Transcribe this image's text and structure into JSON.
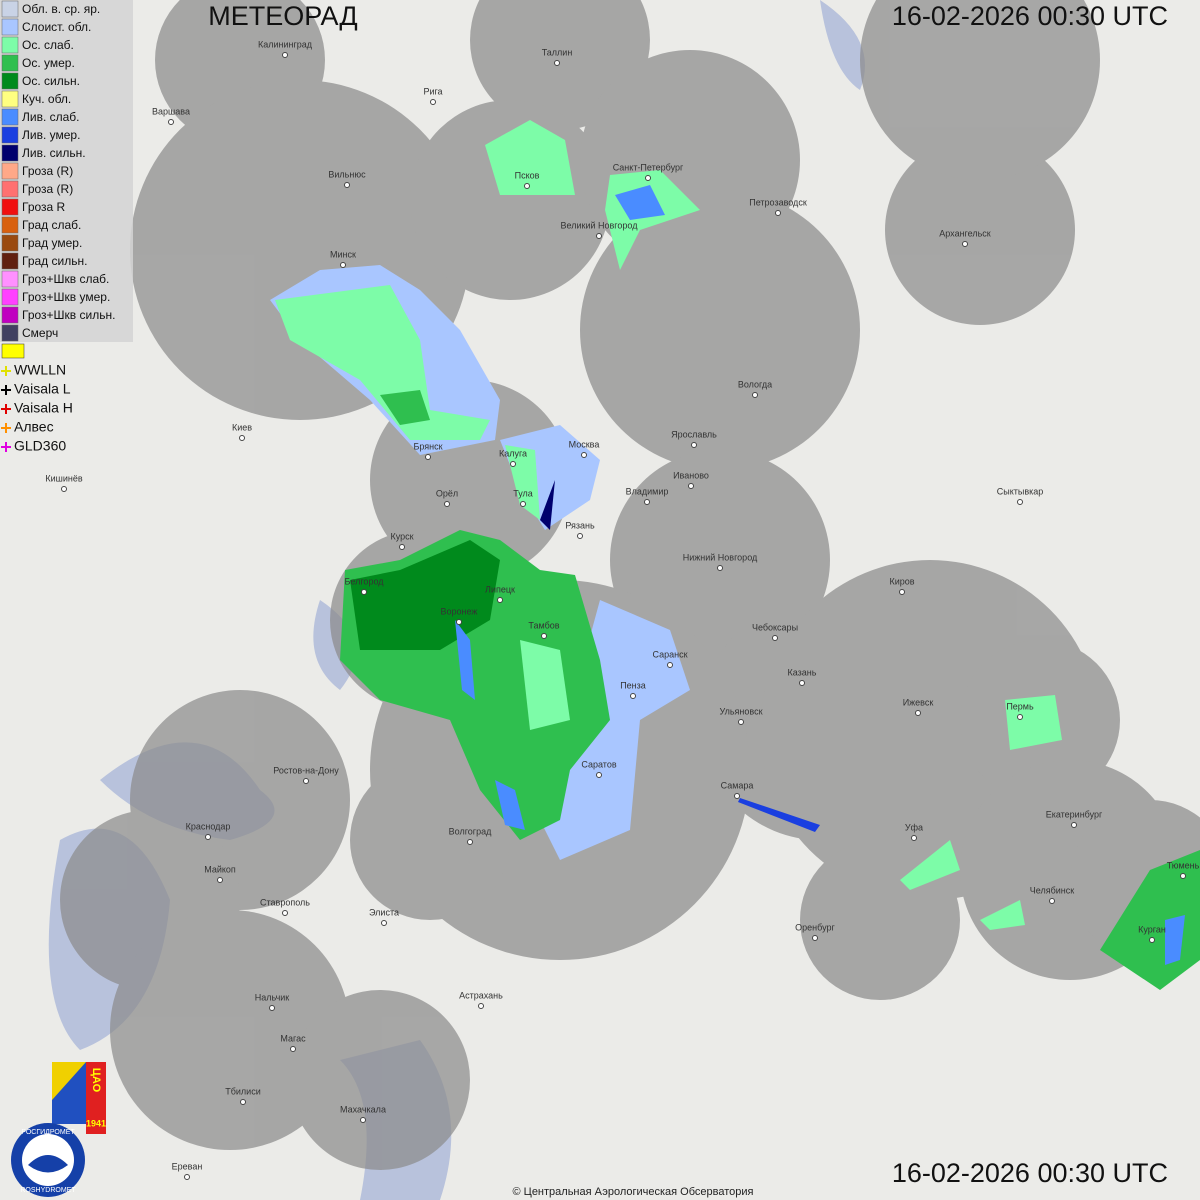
{
  "header": {
    "title": "МЕТЕОРАД",
    "timestamp_top": "16-02-2026  00:30 UTC",
    "timestamp_bottom": "16-02-2026  00:30 UTC"
  },
  "legend": [
    {
      "label": "Обл. в. ср. яр.",
      "color": "#c9d3e6"
    },
    {
      "label": "Слоист. обл.",
      "color": "#a9c6ff"
    },
    {
      "label": "Ос. слаб.",
      "color": "#7dfca8"
    },
    {
      "label": "Ос. умер.",
      "color": "#2fbf4f"
    },
    {
      "label": "Ос. сильн.",
      "color": "#008a1c"
    },
    {
      "label": "Куч. обл.",
      "color": "#ffff80"
    },
    {
      "label": "Лив. слаб.",
      "color": "#4a8cff"
    },
    {
      "label": "Лив. умер.",
      "color": "#1a3fe0"
    },
    {
      "label": "Лив. сильн.",
      "color": "#00006e"
    },
    {
      "label": "Гроза (R)",
      "color": "#ffa888"
    },
    {
      "label": "Гроза (R)",
      "color": "#ff7070"
    },
    {
      "label": "Гроза R",
      "color": "#f01010"
    },
    {
      "label": "Град слаб.",
      "color": "#d86010"
    },
    {
      "label": "Град умер.",
      "color": "#9a4a10"
    },
    {
      "label": "Град сильн.",
      "color": "#602010"
    },
    {
      "label": "Гроз+Шкв слаб.",
      "color": "#ff90ff"
    },
    {
      "label": "Гроз+Шкв умер.",
      "color": "#ff40ff"
    },
    {
      "label": "Гроз+Шкв сильн.",
      "color": "#c000c0"
    },
    {
      "label": "Смерч",
      "color": "#404060"
    }
  ],
  "lightning": [
    {
      "label": "WWLLN",
      "color": "#e0e000"
    },
    {
      "label": "Vaisala L",
      "color": "#000000"
    },
    {
      "label": "Vaisala H",
      "color": "#e00000"
    },
    {
      "label": "Алвес",
      "color": "#ff9000"
    },
    {
      "label": "GLD360",
      "color": "#e000e0"
    }
  ],
  "cities": [
    "Калининград",
    "Таллин",
    "Рига",
    "Варшава",
    "Псков",
    "Санкт-Петербург",
    "Петрозаводск",
    "Вильнюс",
    "Великий Новгород",
    "Архангельск",
    "Минск",
    "Вологда",
    "Киев",
    "Ярославль",
    "Брянск",
    "Москва",
    "Калуга",
    "Иваново",
    "Кишинёв",
    "Орёл",
    "Владимир",
    "Тула",
    "Сыктывкар",
    "Рязань",
    "Курск",
    "Нижний Новгород",
    "Киров",
    "Белгород",
    "Липецк",
    "Воронеж",
    "Тамбов",
    "Чебоксары",
    "Саранск",
    "Казань",
    "Пенза",
    "Ижевск",
    "Ульяновск",
    "Пермь",
    "Саратов",
    "Ростов-на-Дону",
    "Самара",
    "Екатеринбург",
    "Уфа",
    "Краснодар",
    "Волгоград",
    "Майкоп",
    "Челябинск",
    "Тюмень",
    "Элиста",
    "Ставрополь",
    "Оренбург",
    "Курган",
    "Нальчик",
    "Астрахань",
    "Магас",
    "Тбилиси",
    "Махачкала",
    "Ереван"
  ],
  "logo": {
    "org": "ЦАО",
    "year": "1941",
    "name_ru": "РОСГИДРОМЕТ",
    "name_en": "ROSHYDROMET"
  },
  "footer": {
    "copyright": "© Центральная Аэрологическая Обсерватория"
  }
}
